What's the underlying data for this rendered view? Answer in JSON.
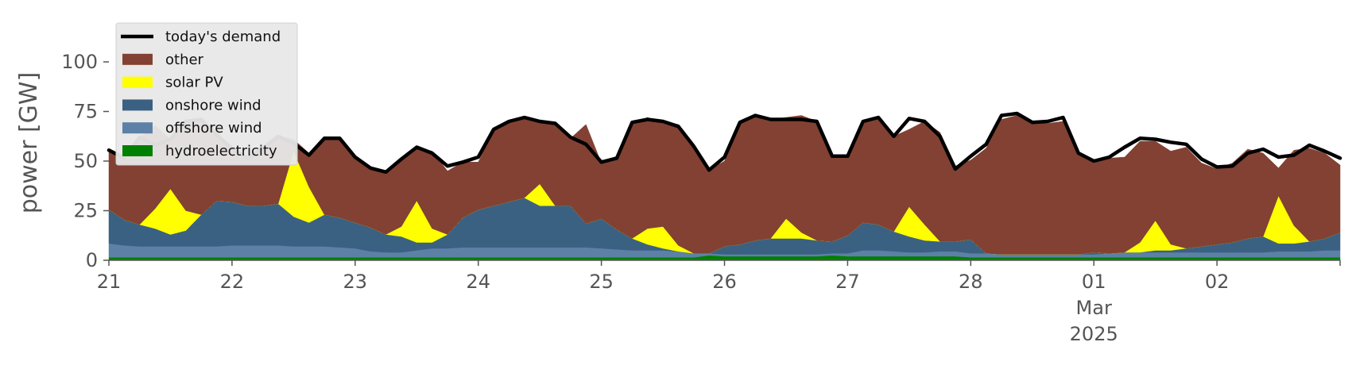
{
  "chart_data": {
    "type": "area",
    "title": "",
    "xlabel": "",
    "ylabel": "power [GW]",
    "ylim": [
      0,
      120
    ],
    "yticks": [
      0,
      25,
      50,
      75,
      100
    ],
    "xlim": [
      "2025-02-21T00:00",
      "2025-03-03T00:00"
    ],
    "x_tick_labels": [
      {
        "date": "2025-02-21",
        "label": "21"
      },
      {
        "date": "2025-02-22",
        "label": "22"
      },
      {
        "date": "2025-02-23",
        "label": "23"
      },
      {
        "date": "2025-02-24",
        "label": "24"
      },
      {
        "date": "2025-02-25",
        "label": "25"
      },
      {
        "date": "2025-02-26",
        "label": "26"
      },
      {
        "date": "2025-02-27",
        "label": "27"
      },
      {
        "date": "2025-02-28",
        "label": "28"
      },
      {
        "date": "2025-03-01",
        "label": "01"
      },
      {
        "date": "2025-03-02",
        "label": "02"
      },
      {
        "date": "2025-03-03",
        "label": ""
      }
    ],
    "x_sublabel": {
      "date": "2025-03-01",
      "month": "Mar",
      "year": "2025"
    },
    "legend_position": "top-left",
    "grid": false,
    "x": [
      "2025-02-21T00:00",
      "2025-02-21T03:00",
      "2025-02-21T06:00",
      "2025-02-21T09:00",
      "2025-02-21T12:00",
      "2025-02-21T15:00",
      "2025-02-21T18:00",
      "2025-02-21T21:00",
      "2025-02-22T00:00",
      "2025-02-22T03:00",
      "2025-02-22T06:00",
      "2025-02-22T09:00",
      "2025-02-22T12:00",
      "2025-02-22T15:00",
      "2025-02-22T18:00",
      "2025-02-22T21:00",
      "2025-02-23T00:00",
      "2025-02-23T03:00",
      "2025-02-23T06:00",
      "2025-02-23T09:00",
      "2025-02-23T12:00",
      "2025-02-23T15:00",
      "2025-02-23T18:00",
      "2025-02-23T21:00",
      "2025-02-24T00:00",
      "2025-02-24T03:00",
      "2025-02-24T06:00",
      "2025-02-24T09:00",
      "2025-02-24T12:00",
      "2025-02-24T15:00",
      "2025-02-24T18:00",
      "2025-02-24T21:00",
      "2025-02-25T00:00",
      "2025-02-25T03:00",
      "2025-02-25T06:00",
      "2025-02-25T09:00",
      "2025-02-25T12:00",
      "2025-02-25T15:00",
      "2025-02-25T18:00",
      "2025-02-25T21:00",
      "2025-02-26T00:00",
      "2025-02-26T03:00",
      "2025-02-26T06:00",
      "2025-02-26T09:00",
      "2025-02-26T12:00",
      "2025-02-26T15:00",
      "2025-02-26T18:00",
      "2025-02-26T21:00",
      "2025-02-27T00:00",
      "2025-02-27T03:00",
      "2025-02-27T06:00",
      "2025-02-27T09:00",
      "2025-02-27T12:00",
      "2025-02-27T15:00",
      "2025-02-27T18:00",
      "2025-02-27T21:00",
      "2025-02-28T00:00",
      "2025-02-28T03:00",
      "2025-02-28T06:00",
      "2025-02-28T09:00",
      "2025-02-28T12:00",
      "2025-02-28T15:00",
      "2025-02-28T18:00",
      "2025-02-28T21:00",
      "2025-03-01T00:00",
      "2025-03-01T03:00",
      "2025-03-01T06:00",
      "2025-03-01T09:00",
      "2025-03-01T12:00",
      "2025-03-01T15:00",
      "2025-03-01T18:00",
      "2025-03-01T21:00",
      "2025-03-02T00:00",
      "2025-03-02T03:00",
      "2025-03-02T06:00",
      "2025-03-02T09:00",
      "2025-03-02T12:00",
      "2025-03-02T15:00",
      "2025-03-02T18:00",
      "2025-03-02T21:00",
      "2025-03-03T00:00"
    ],
    "series": [
      {
        "name": "hydroelectricity",
        "color": "#008000",
        "kind": "stacked-area",
        "values": [
          1.5,
          1.5,
          1.5,
          1.5,
          1.5,
          1.5,
          1.5,
          1.5,
          1.5,
          1.5,
          1.5,
          1.5,
          1.5,
          1.5,
          1.5,
          1.5,
          1.5,
          1.5,
          1.5,
          1.5,
          1.5,
          1.5,
          1.5,
          1.5,
          1.5,
          1.5,
          1.5,
          1.5,
          1.5,
          1.5,
          1.5,
          1.5,
          1.5,
          1.5,
          1.5,
          1.5,
          1.5,
          1.5,
          1.5,
          2.5,
          2,
          2,
          2,
          2,
          2,
          2,
          2,
          2.5,
          2,
          2,
          2,
          2,
          2,
          2,
          2,
          2,
          1.5,
          1.5,
          1.5,
          1.5,
          1.5,
          1.5,
          1.5,
          1.5,
          1.5,
          1.5,
          1.5,
          1.5,
          1.5,
          1.5,
          1.5,
          1.5,
          1.5,
          1.5,
          1.5,
          1.5,
          1.5,
          1.5,
          1.5,
          1.5,
          1.5
        ]
      },
      {
        "name": "offshore wind",
        "color": "#5d81a6",
        "kind": "stacked-area",
        "values": [
          7,
          6,
          5.5,
          5.5,
          5.5,
          5.5,
          5.5,
          5.5,
          6,
          6,
          6,
          6,
          5.5,
          5.5,
          5.5,
          5,
          4.5,
          3,
          2.5,
          2.5,
          3.5,
          4.5,
          4.5,
          5,
          5,
          5,
          5,
          5,
          5,
          5,
          5,
          5,
          4.5,
          4,
          3.5,
          3.5,
          3.5,
          3,
          2,
          1,
          1,
          1,
          1,
          1,
          1,
          1,
          1,
          1,
          1.5,
          3,
          3,
          2.5,
          2,
          2,
          2.5,
          2.5,
          2,
          2,
          1.5,
          1.5,
          1.5,
          1.5,
          1.5,
          1.5,
          1.5,
          2,
          2.5,
          2.5,
          2.5,
          2.5,
          2.5,
          2.5,
          2.5,
          2.5,
          2.5,
          2.5,
          3,
          3,
          3,
          3.5,
          3.5
        ]
      },
      {
        "name": "onshore wind",
        "color": "#3b6182",
        "kind": "stacked-area",
        "values": [
          17,
          13,
          11,
          9,
          6,
          8,
          16,
          23,
          22,
          20,
          20,
          21,
          15,
          12,
          16,
          15,
          13,
          12,
          9,
          8,
          4,
          3,
          7,
          15,
          19,
          21,
          23,
          25,
          21,
          21,
          21,
          12,
          15,
          10,
          6,
          3,
          1,
          0,
          0,
          0,
          4,
          5,
          7,
          8,
          8,
          8,
          7,
          6,
          9,
          14,
          13,
          10,
          8,
          6,
          5,
          5,
          7,
          0,
          0,
          0,
          0,
          0,
          0,
          0,
          1,
          0,
          0,
          0,
          1,
          1,
          2,
          3,
          4,
          5,
          7,
          8,
          4,
          4,
          5,
          6,
          9
        ]
      },
      {
        "name": "solar PV",
        "color": "#ffff00",
        "kind": "stacked-area",
        "values": [
          0,
          0,
          0,
          10,
          23,
          10,
          0,
          0,
          0,
          0,
          0,
          0,
          33,
          18,
          0,
          0,
          0,
          0,
          0,
          5,
          21,
          7,
          0,
          0,
          0,
          0,
          0,
          0,
          11,
          0,
          0,
          0,
          0,
          0,
          0,
          8,
          11,
          3,
          0,
          0,
          0,
          0,
          0,
          0,
          10,
          3,
          0,
          0,
          0,
          0,
          0,
          0,
          15,
          8,
          0,
          0,
          0,
          0,
          0,
          0,
          0,
          0,
          0,
          0,
          0,
          0,
          0,
          5,
          15,
          3,
          0,
          0,
          0,
          0,
          0,
          0,
          24,
          9,
          0,
          0,
          0
        ]
      },
      {
        "name": "other",
        "color": "#824132",
        "kind": "stacked-area",
        "values": [
          30,
          31,
          44,
          42,
          25,
          45,
          48,
          35,
          27,
          24,
          29,
          34,
          6,
          17,
          38,
          40,
          33,
          30,
          31,
          35,
          27,
          39,
          32,
          28,
          24,
          38,
          40,
          40,
          31,
          41,
          34,
          50,
          28,
          37,
          58,
          56,
          52,
          61,
          55,
          42,
          43,
          61,
          63,
          60,
          51,
          59,
          60,
          43,
          39,
          51,
          54,
          48,
          39,
          52,
          55,
          38,
          40,
          53,
          68,
          70,
          66,
          66,
          67,
          51,
          45,
          48,
          48,
          51,
          40,
          47,
          51,
          42,
          38,
          40,
          45,
          42,
          14,
          38,
          47,
          43,
          34
        ]
      },
      {
        "name": "today's demand",
        "color": "#000000",
        "kind": "line",
        "values": [
          55.5,
          51.5,
          62,
          58,
          61,
          70,
          71,
          63,
          56.5,
          51.5,
          56.5,
          62.5,
          59,
          53,
          61.5,
          61.5,
          52,
          46.5,
          44.5,
          51,
          57,
          54,
          47.5,
          49.5,
          52,
          66,
          70,
          72,
          70,
          69,
          62,
          58.5,
          49.5,
          51.5,
          69.5,
          71,
          70,
          67.5,
          57.5,
          45.5,
          52,
          69.5,
          73,
          71,
          71,
          71,
          70,
          52.5,
          52.5,
          70,
          72,
          62.5,
          71.5,
          70,
          62.5,
          46,
          52.5,
          58.5,
          73,
          74,
          69.5,
          70,
          72,
          54,
          50,
          52,
          57,
          61.5,
          61,
          59.5,
          58.5,
          51,
          47,
          47.5,
          54,
          56,
          52,
          53,
          58,
          55,
          51.5
        ]
      }
    ]
  }
}
